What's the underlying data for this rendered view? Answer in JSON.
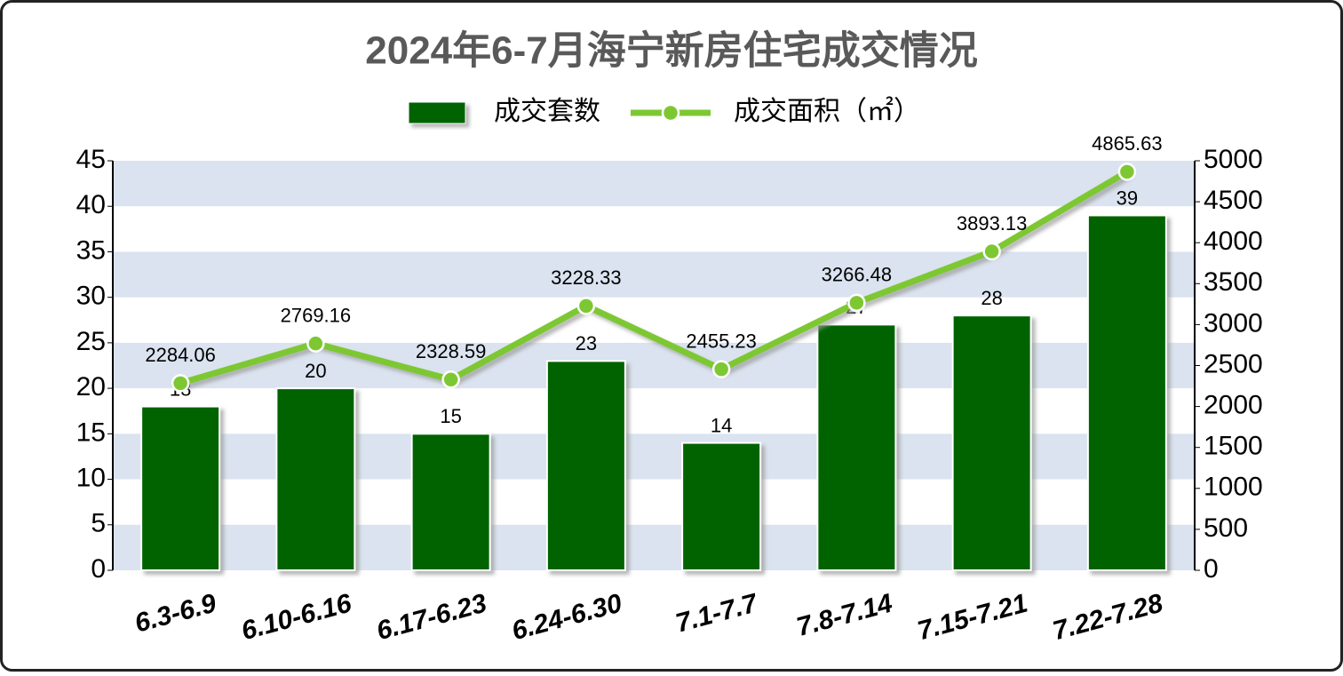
{
  "chart_data": {
    "type": "bar-line",
    "title": "2024年6-7月海宁新房住宅成交情况",
    "categories": [
      "6.3-6.9",
      "6.10-6.16",
      "6.17-6.23",
      "6.24-6.30",
      "7.1-7.7",
      "7.8-7.14",
      "7.15-7.21",
      "7.22-7.28"
    ],
    "series": [
      {
        "name": "成交套数",
        "type": "bar",
        "color": "#006400",
        "values": [
          18,
          20,
          15,
          23,
          14,
          27,
          28,
          39
        ]
      },
      {
        "name": "成交面积（㎡）",
        "type": "line",
        "axis": "y2",
        "color": "#7dc832",
        "values": [
          2284.06,
          2769.16,
          2328.59,
          3228.33,
          2455.23,
          3266.48,
          3893.13,
          4865.63
        ]
      }
    ],
    "ylim": [
      0,
      45
    ],
    "yticks": [
      0,
      5,
      10,
      15,
      20,
      25,
      30,
      35,
      40,
      45
    ],
    "y2lim": [
      0,
      5000
    ],
    "y2ticks": [
      0,
      500,
      1000,
      1500,
      2000,
      2500,
      3000,
      3500,
      4000,
      4500,
      5000
    ],
    "grid": "bands",
    "legend": "top"
  }
}
